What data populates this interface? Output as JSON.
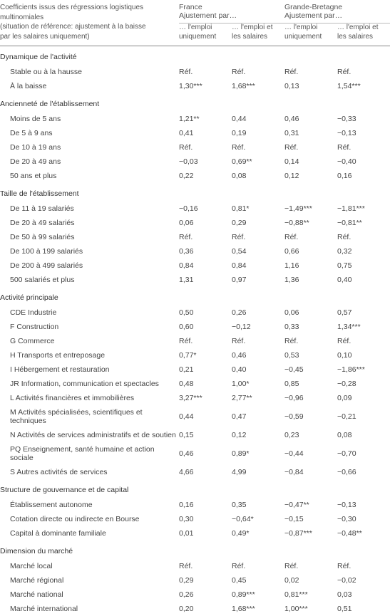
{
  "header": {
    "meta_lines": "Coefficients issus des régressions logistiques multinomiales\n(situation de référence: ajustement à la baisse\npar les salaires uniquement)",
    "countries": {
      "france": "France",
      "uk": "Grande-Bretagne"
    },
    "adjustment_by": "Ajustement par…",
    "cols": {
      "c1": "… l'emploi uniquement",
      "c2": "… l'emploi et les salaires",
      "c3": "… l'emploi uniquement",
      "c4": "… l'emploi et les salaires"
    }
  },
  "sections": [
    {
      "title": "Dynamique de l'activité",
      "rows": [
        {
          "label": "Stable ou à la hausse",
          "v": [
            "Réf.",
            "Réf.",
            "Réf.",
            "Réf."
          ]
        },
        {
          "label": "À la baisse",
          "v": [
            "1,30***",
            "1,68***",
            "0,13",
            "1,54***"
          ]
        }
      ]
    },
    {
      "title": "Ancienneté de l'établissement",
      "rows": [
        {
          "label": "Moins de 5 ans",
          "v": [
            "1,21**",
            "0,44",
            "0,46",
            "−0,33"
          ]
        },
        {
          "label": "De 5 à 9 ans",
          "v": [
            "0,41",
            "0,19",
            "0,31",
            "−0,13"
          ]
        },
        {
          "label": "De 10 à 19 ans",
          "v": [
            "Réf.",
            "Réf.",
            "Réf.",
            "Réf."
          ]
        },
        {
          "label": "De 20 à 49 ans",
          "v": [
            "−0,03",
            "0,69**",
            "0,14",
            "−0,40"
          ]
        },
        {
          "label": "50 ans et plus",
          "v": [
            "0,22",
            "0,08",
            "0,12",
            "0,16"
          ]
        }
      ]
    },
    {
      "title": "Taille de l'établissement",
      "rows": [
        {
          "label": "De 11 à 19 salariés",
          "v": [
            "−0,16",
            "0,81*",
            "−1,49***",
            "−1,81***"
          ]
        },
        {
          "label": "De 20 à 49 salariés",
          "v": [
            "0,06",
            "0,29",
            "−0,88**",
            "−0,81**"
          ]
        },
        {
          "label": "De 50 à 99 salariés",
          "v": [
            "Réf.",
            "Réf.",
            "Réf.",
            "Réf."
          ]
        },
        {
          "label": "De 100 à 199 salariés",
          "v": [
            "0,36",
            "0,54",
            "0,66",
            "0,32"
          ]
        },
        {
          "label": "De 200 à 499 salariés",
          "v": [
            "0,84",
            "0,84",
            "1,16",
            "0,75"
          ]
        },
        {
          "label": "500 salariés et plus",
          "v": [
            "1,31",
            "0,97",
            "1,36",
            "0,40"
          ]
        }
      ]
    },
    {
      "title": "Activité principale",
      "rows": [
        {
          "label": "CDE Industrie",
          "v": [
            "0,50",
            "0,26",
            "0,06",
            "0,57"
          ]
        },
        {
          "label": "F Construction",
          "v": [
            "0,60",
            "−0,12",
            "0,33",
            "1,34***"
          ]
        },
        {
          "label": "G Commerce",
          "v": [
            "Réf.",
            "Réf.",
            "Réf.",
            "Réf."
          ]
        },
        {
          "label": "H Transports et entreposage",
          "v": [
            "0,77*",
            "0,46",
            "0,53",
            "0,10"
          ]
        },
        {
          "label": "I Hébergement et restauration",
          "v": [
            "0,21",
            "0,40",
            "−0,45",
            "−1,86***"
          ]
        },
        {
          "label": "JR Information, communication et spectacles",
          "v": [
            "0,48",
            "1,00*",
            "0,85",
            "−0,28"
          ]
        },
        {
          "label": "L Activités financières et immobilières",
          "v": [
            "3,27***",
            "2,77**",
            "−0,96",
            "0,09"
          ]
        },
        {
          "label": "M Activités spécialisées, scientifiques et techniques",
          "v": [
            "0,44",
            "0,47",
            "−0,59",
            "−0,21"
          ]
        },
        {
          "label": "N Activités de services administratifs et de soutien",
          "v": [
            "0,15",
            "0,12",
            "0,23",
            "0,08"
          ]
        },
        {
          "label": "PQ Enseignement, santé humaine et action sociale",
          "v": [
            "0,46",
            "0,89*",
            "−0,44",
            "−0,70"
          ]
        },
        {
          "label": "S Autres activités de services",
          "v": [
            "4,66",
            "4,99",
            "−0,84",
            "−0,66"
          ]
        }
      ]
    },
    {
      "title": "Structure de gouvernance et de capital",
      "rows": [
        {
          "label": "Établissement autonome",
          "v": [
            "0,16",
            "0,35",
            "−0,47**",
            "−0,13"
          ]
        },
        {
          "label": "Cotation directe ou indirecte en Bourse",
          "v": [
            "0,30",
            "−0,64*",
            "−0,15",
            "−0,30"
          ]
        },
        {
          "label": "Capital à dominante familiale",
          "v": [
            "0,01",
            "0,49*",
            "−0,87***",
            "−0,48**"
          ]
        }
      ]
    },
    {
      "title": "Dimension du marché",
      "rows": [
        {
          "label": "Marché local",
          "v": [
            "Réf.",
            "Réf.",
            "Réf.",
            "Réf."
          ]
        },
        {
          "label": "Marché régional",
          "v": [
            "0,29",
            "0,45",
            "0,02",
            "−0,02"
          ]
        },
        {
          "label": "Marché national",
          "v": [
            "0,26",
            "0,89***",
            "0,81***",
            "0,03"
          ]
        },
        {
          "label": "Marché international",
          "v": [
            "0,20",
            "1,68***",
            "1,00***",
            "0,51"
          ]
        }
      ]
    }
  ]
}
